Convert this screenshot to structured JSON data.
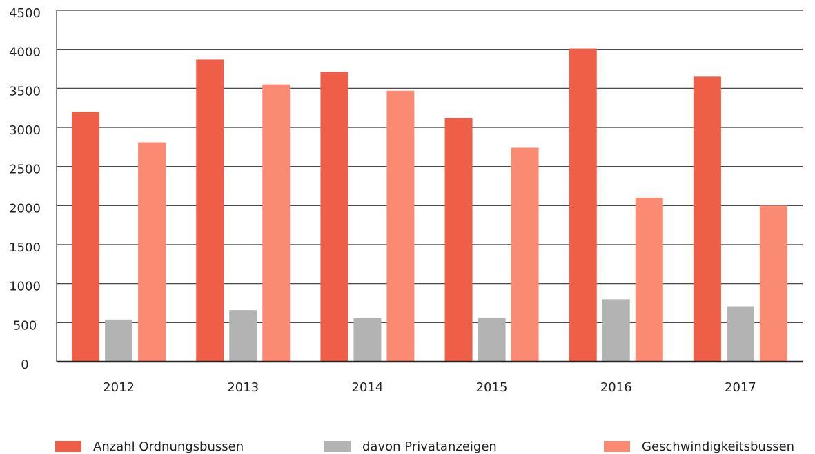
{
  "chart_data": {
    "type": "bar",
    "categories": [
      "2012",
      "2013",
      "2014",
      "2015",
      "2016",
      "2017"
    ],
    "series": [
      {
        "name": "Anzahl Ordnungsbussen",
        "color": "#ef5f47",
        "values": [
          3200,
          3870,
          3710,
          3120,
          4010,
          3650
        ]
      },
      {
        "name": "davon Privatanzeigen",
        "color": "#b3b3b3",
        "values": [
          540,
          660,
          560,
          560,
          800,
          710
        ]
      },
      {
        "name": "Geschwindigkeitsbussen",
        "color": "#fb8a72",
        "values": [
          2810,
          3550,
          3470,
          2740,
          2100,
          2000
        ]
      }
    ],
    "ylim": [
      0,
      4500
    ],
    "yticks": [
      0,
      500,
      1000,
      1500,
      2000,
      2500,
      3000,
      3500,
      4000,
      4500
    ],
    "grid": true,
    "legend": "bottom"
  }
}
